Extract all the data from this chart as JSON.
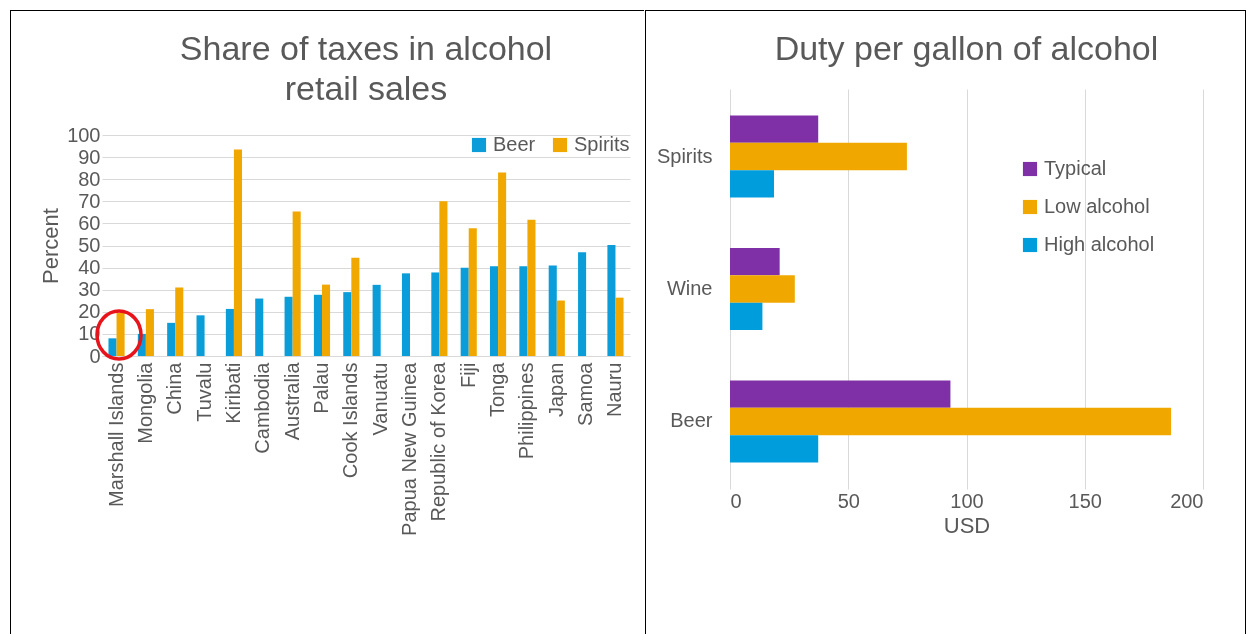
{
  "chart_data": [
    {
      "type": "bar",
      "title": "Share of taxes in alcohol retail sales",
      "ylabel": "Percent",
      "categories": [
        "Marshall Islands",
        "Mongolia",
        "China",
        "Tuvalu",
        "Kiribati",
        "Cambodia",
        "Australia",
        "Palau",
        "Cook Islands",
        "Vanuatu",
        "Papua New Guinea",
        "Republic of Korea",
        "Fiji",
        "Tonga",
        "Philippines",
        "Japan",
        "Samoa",
        "Nauru"
      ],
      "series": [
        {
          "name": "Beer",
          "color": "#0a9dd9",
          "values": [
            8,
            10,
            15,
            18.4,
            21.3,
            26,
            26.8,
            27.7,
            28.9,
            32.2,
            37.4,
            37.8,
            39.9,
            40.6,
            40.6,
            40.9,
            47,
            50.2
          ]
        },
        {
          "name": "Spirits",
          "color": "#f0a800",
          "values": [
            19.5,
            21.2,
            31,
            null,
            93.4,
            null,
            65.4,
            32.3,
            44.5,
            null,
            null,
            70,
            57.8,
            83,
            61.7,
            25.1,
            null,
            26.4
          ]
        }
      ],
      "ylim": [
        0,
        100
      ],
      "yticks": [
        0,
        10,
        20,
        30,
        40,
        50,
        60,
        70,
        80,
        90,
        100
      ],
      "grid": "y",
      "legend": "top right"
    },
    {
      "type": "bar",
      "orientation": "horizontal",
      "title": "Duty per gallon of alcohol",
      "xlabel": "USD",
      "categories": [
        "Spirits",
        "Wine",
        "Beer"
      ],
      "series": [
        {
          "name": "Typical",
          "color": "#7f30a6",
          "values": [
            37.3,
            21,
            93.2
          ]
        },
        {
          "name": "Low alcohol",
          "color": "#f0a800",
          "values": [
            74.8,
            27.4,
            186.5
          ]
        },
        {
          "name": "High alcohol",
          "color": "#009ddc",
          "values": [
            18.6,
            13.7,
            37.3
          ]
        }
      ],
      "xlim": [
        0,
        200
      ],
      "xticks": [
        0,
        50,
        100,
        150,
        200
      ],
      "grid": "x",
      "legend": "right"
    }
  ]
}
